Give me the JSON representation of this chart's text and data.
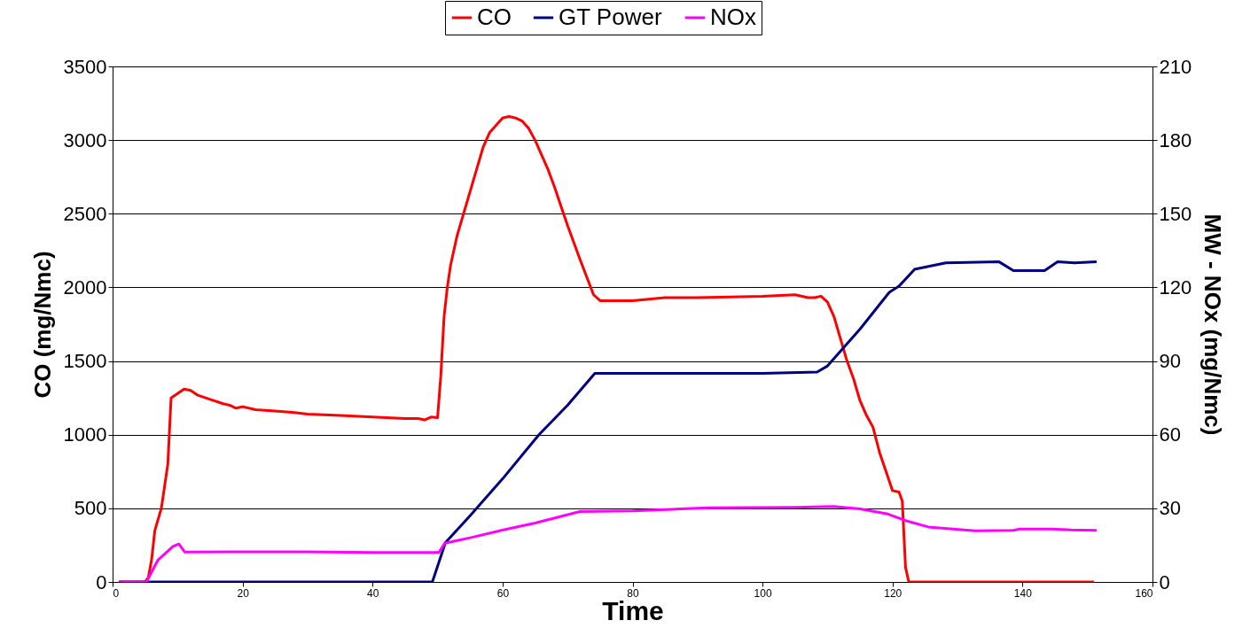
{
  "chart_data": {
    "type": "line",
    "xlabel": "Time",
    "ylabel": "CO (mg/Nmc)",
    "y2label": "MW - NOx (mg/Nmc)",
    "xlim": [
      0,
      160
    ],
    "xticks": [
      0,
      20,
      40,
      60,
      80,
      100,
      120,
      140,
      160
    ],
    "ylim": [
      0,
      3500
    ],
    "yticks": [
      0,
      500,
      1000,
      1500,
      2000,
      2500,
      3000,
      3500
    ],
    "y2lim": [
      0,
      210
    ],
    "y2ticks": [
      0,
      30,
      60,
      90,
      120,
      150,
      180,
      210
    ],
    "grid": "y",
    "legend": "top",
    "line_style": "solid",
    "series": [
      {
        "name": "CO",
        "color": "#ff0000",
        "x": [
          1,
          5,
          5.5,
          6,
          6.5,
          7.5,
          8,
          8.5,
          9,
          10,
          11,
          12,
          13,
          15,
          17,
          18,
          19,
          20,
          22,
          25,
          28,
          30,
          35,
          40,
          45,
          47,
          48,
          49,
          50,
          50.5,
          51,
          51.5,
          52,
          53,
          54,
          55,
          56,
          57,
          58,
          59,
          60,
          61,
          62,
          63,
          64,
          65,
          66,
          67,
          68,
          69,
          70,
          72,
          74,
          75,
          76,
          78,
          80,
          85,
          90,
          100,
          105,
          107,
          108,
          109,
          110,
          111,
          112,
          113,
          114,
          115,
          116,
          117,
          118,
          119,
          120,
          121,
          121.5,
          122,
          122.5,
          151
        ],
        "values": [
          0,
          0,
          30,
          150,
          350,
          500,
          650,
          800,
          1250,
          1280,
          1310,
          1300,
          1270,
          1240,
          1210,
          1200,
          1180,
          1190,
          1170,
          1160,
          1150,
          1140,
          1130,
          1120,
          1110,
          1110,
          1100,
          1120,
          1115,
          1400,
          1800,
          2000,
          2150,
          2350,
          2500,
          2650,
          2800,
          2950,
          3050,
          3100,
          3150,
          3160,
          3150,
          3130,
          3080,
          3000,
          2900,
          2800,
          2680,
          2550,
          2420,
          2180,
          1950,
          1910,
          1910,
          1910,
          1910,
          1930,
          1930,
          1940,
          1950,
          1930,
          1930,
          1940,
          1900,
          1800,
          1650,
          1500,
          1380,
          1230,
          1130,
          1050,
          880,
          750,
          620,
          610,
          550,
          100,
          0,
          0
        ]
      },
      {
        "name": "GT Power",
        "color": "#000080",
        "axis": "y2",
        "x": [
          1,
          49.2,
          51.2,
          55,
          60,
          65.6,
          70,
          74.2,
          75,
          80,
          90,
          100,
          108.4,
          110,
          115,
          119.5,
          121,
          123.4,
          128.2,
          136.4,
          138.6,
          143.4,
          145.4,
          148,
          151.4
        ],
        "values": [
          0,
          0,
          16,
          27,
          42,
          60,
          72,
          85,
          85,
          85,
          85,
          85,
          85.5,
          88,
          103,
          118,
          120.5,
          127.4,
          130,
          130.4,
          126.8,
          126.8,
          130.4,
          130,
          130.4
        ]
      },
      {
        "name": "NOx",
        "color": "#ff00ff",
        "axis": "y2",
        "x": [
          1,
          5.2,
          7,
          9.3,
          10.2,
          11.1,
          20,
          30,
          40,
          50.2,
          51.1,
          55,
          60.4,
          65,
          71.9,
          80,
          91.8,
          105,
          110.9,
          115,
          119.1,
          122,
          125.5,
          132.7,
          138.6,
          139.6,
          144.6,
          147.5,
          151.4
        ],
        "values": [
          0,
          0,
          9,
          14.5,
          15.5,
          12.2,
          12.3,
          12.3,
          12,
          12,
          15.8,
          18,
          21.4,
          24,
          28.7,
          29,
          30.2,
          30.4,
          30.8,
          29.8,
          27.8,
          25,
          22.4,
          20.8,
          21,
          21.6,
          21.6,
          21.2,
          21
        ]
      }
    ]
  }
}
